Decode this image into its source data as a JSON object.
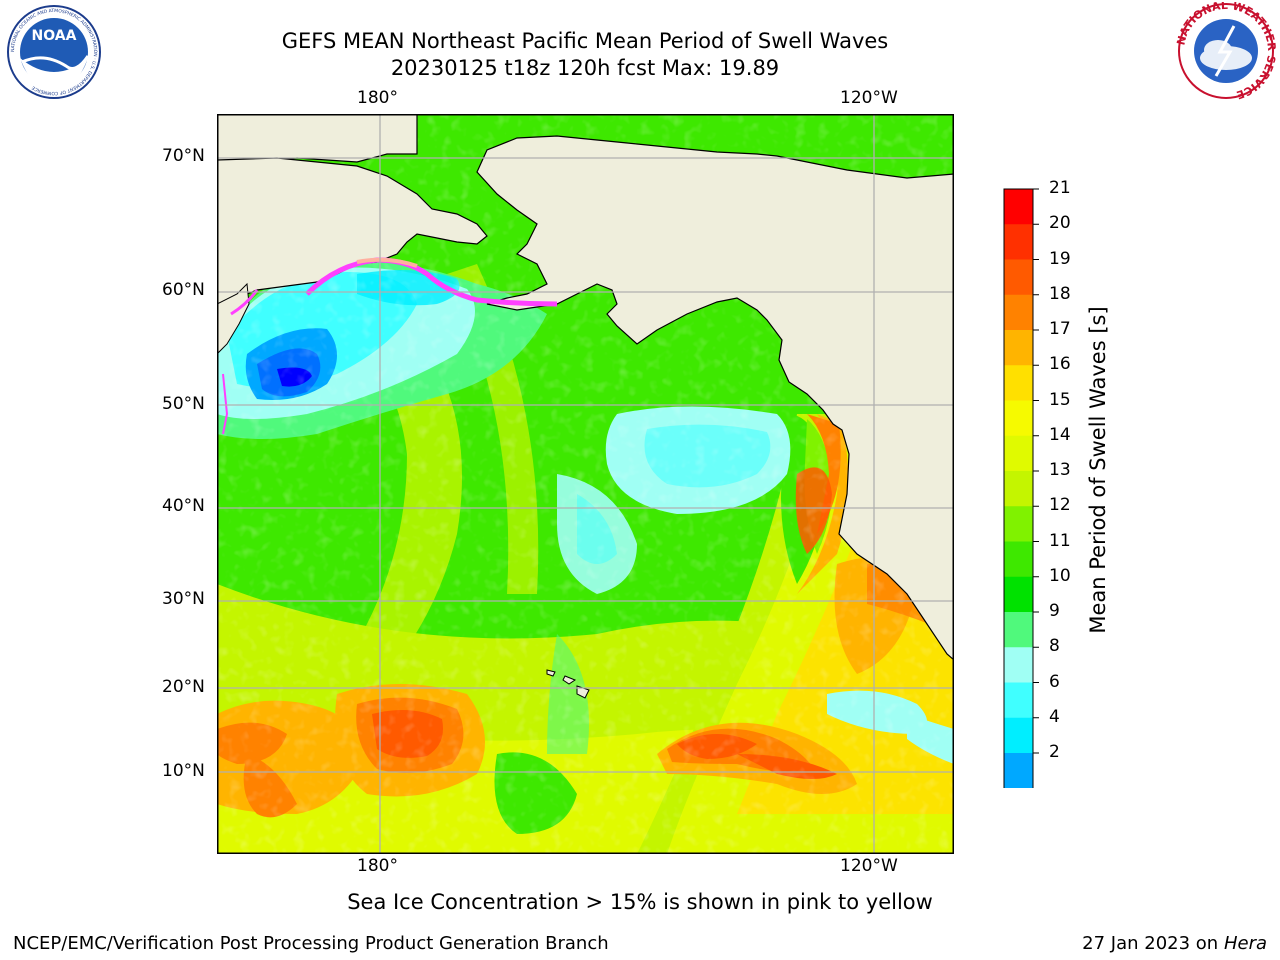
{
  "title": {
    "line1": "GEFS MEAN Northeast Pacific Mean Period of Swell Waves",
    "line2": "20230125 t18z 120h fcst   Max: 19.89"
  },
  "logos": {
    "left_text": "NOAA",
    "left_ring": "NATIONAL OCEANIC AND ATMOSPHERIC ADMINISTRATION · U.S. DEPARTMENT OF COMMERCE",
    "right_ring": "NATIONAL WEATHER SERVICE"
  },
  "map": {
    "lon_labels": [
      "180°",
      "120°W"
    ],
    "lat_labels": [
      "70°N",
      "60°N",
      "50°N",
      "40°N",
      "30°N",
      "20°N",
      "10°N"
    ],
    "land_color": "#efeedc",
    "grid_color": "#b0b0b0"
  },
  "colorbar": {
    "label": "Mean Period of Swell Waves [s]",
    "ticks": [
      "21",
      "20",
      "19",
      "18",
      "17",
      "16",
      "15",
      "14",
      "13",
      "12",
      "11",
      "10",
      "9",
      "8",
      "6",
      "4",
      "2"
    ],
    "colors": [
      "#ff0000",
      "#ff3000",
      "#ff5a00",
      "#ff8200",
      "#ffb400",
      "#ffe000",
      "#f6fa00",
      "#e0fa00",
      "#c4f500",
      "#80f200",
      "#3ee800",
      "#00e200",
      "#50f97c",
      "#a0fff4",
      "#40ffff",
      "#00eeff",
      "#00a8ff",
      "#0070ff"
    ],
    "extend_color": "#0000ff"
  },
  "footer": {
    "note": "Sea Ice Concentration > 15% is shown in pink to yellow",
    "left": "NCEP/EMC/Verification Post Processing Product Generation Branch",
    "right_date": "27 Jan 2023 on ",
    "right_host": "Hera"
  }
}
